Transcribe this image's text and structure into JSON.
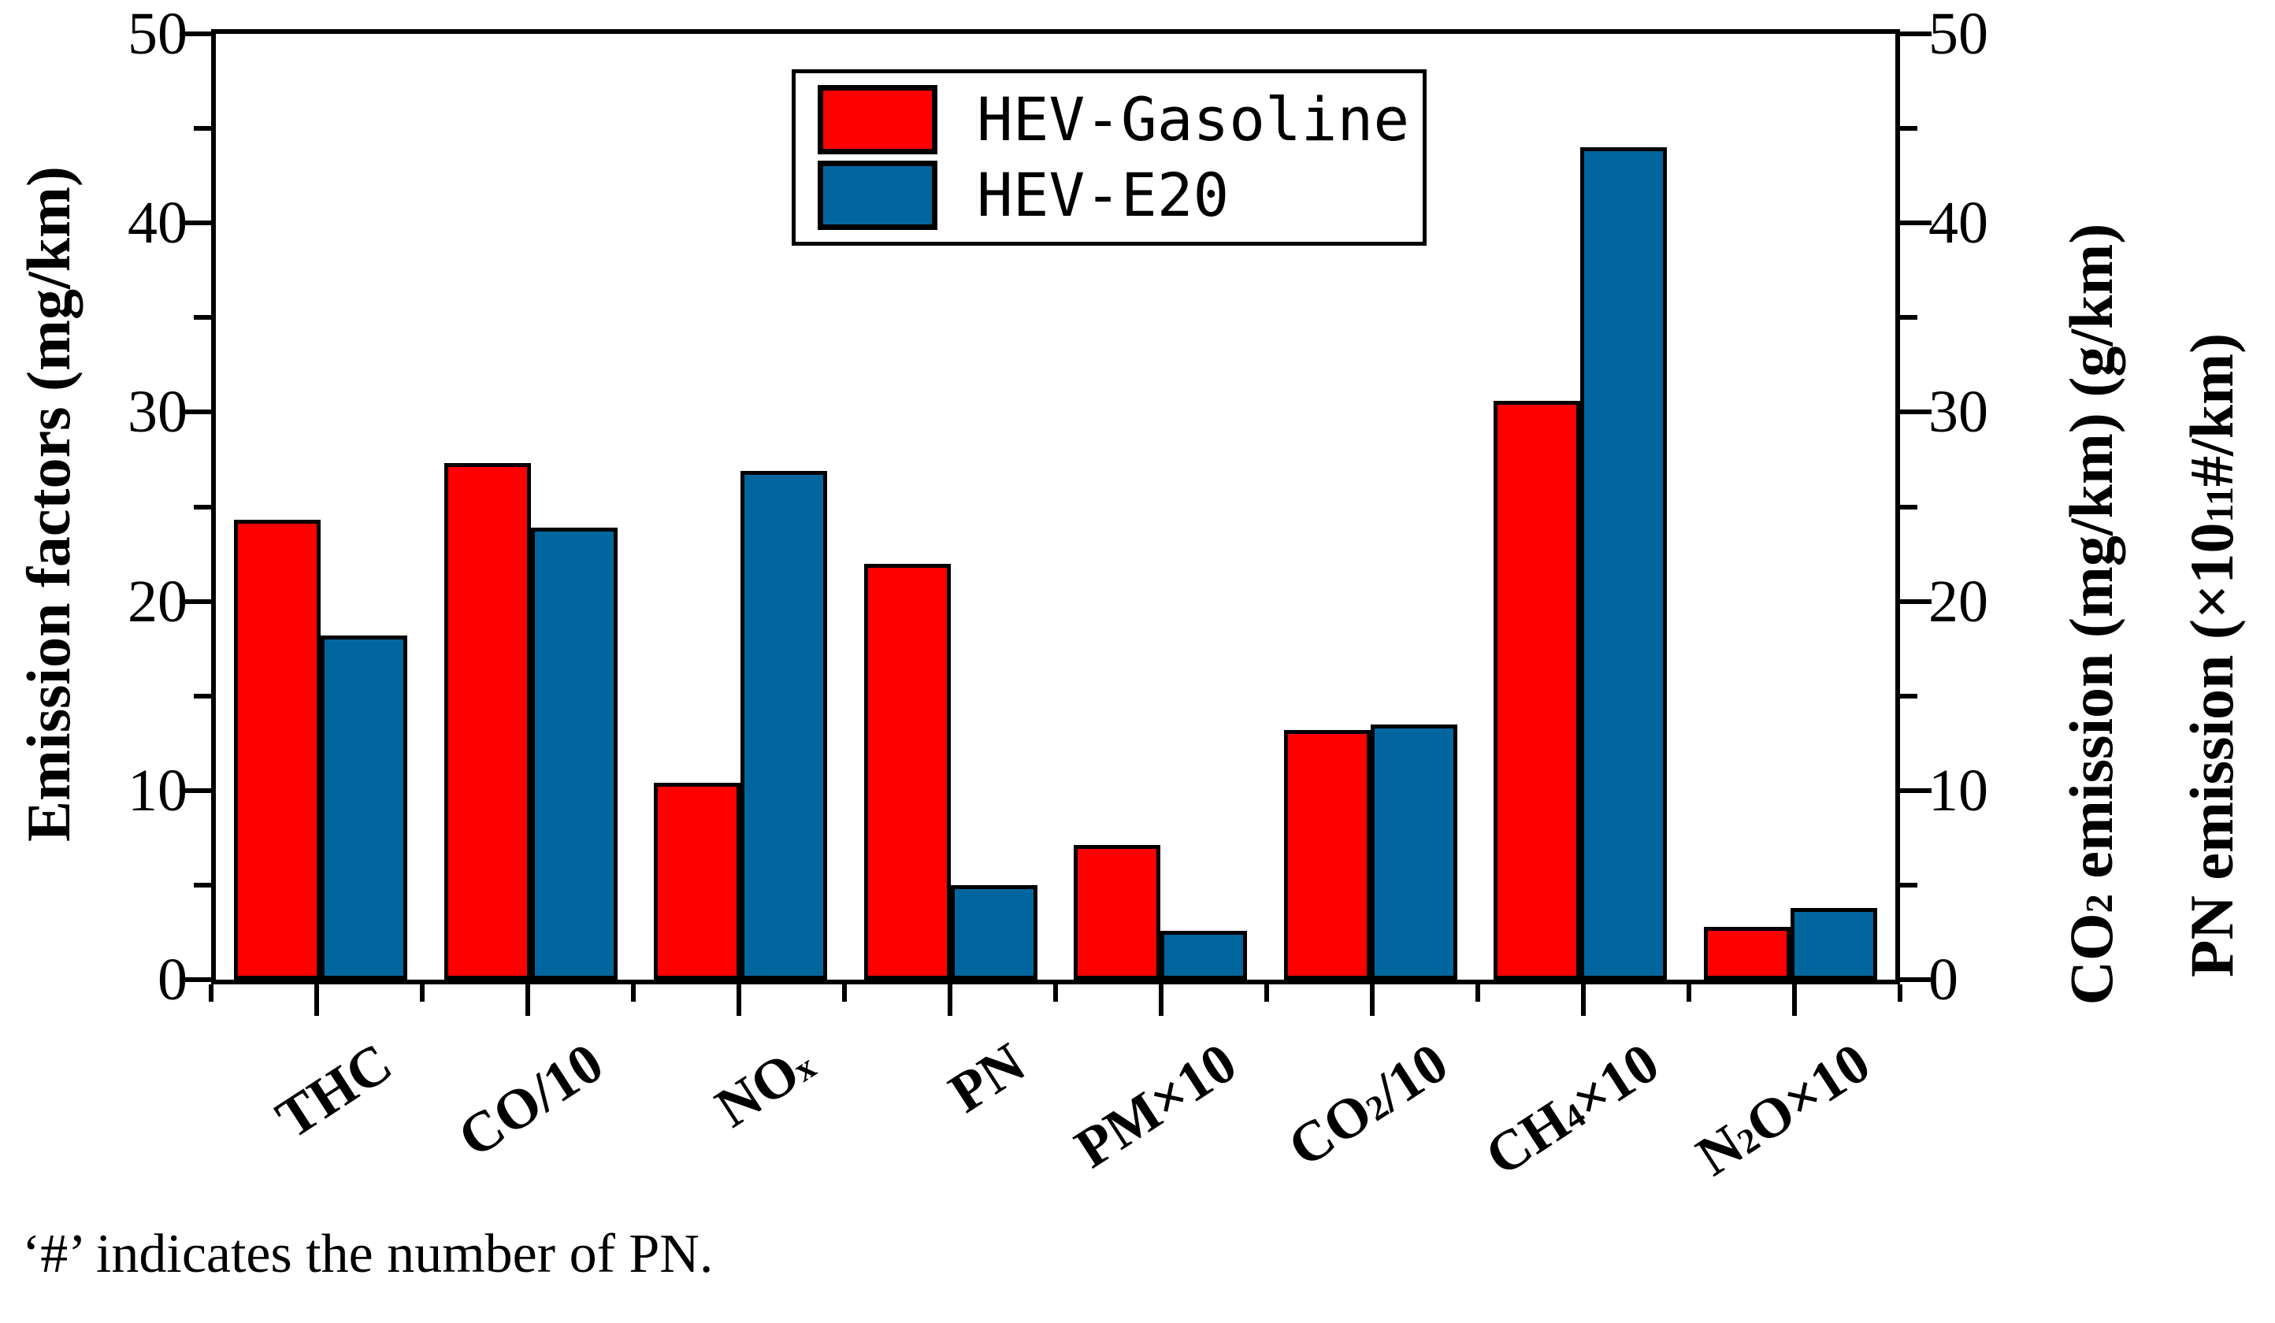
{
  "figure": {
    "caption": "‘#’ indicates the number of PN."
  },
  "chart_data": {
    "type": "bar",
    "title": "",
    "categories": [
      "THC",
      "CO/10",
      "NOx",
      "PN",
      "PM×10",
      "CO2/10",
      "CH4×10",
      "N2O×10"
    ],
    "category_segments": [
      [
        "THC"
      ],
      [
        "CO/10"
      ],
      [
        "NO",
        {
          "sub": "x"
        }
      ],
      [
        "PN"
      ],
      [
        "PM×10"
      ],
      [
        "CO",
        {
          "sub": "2"
        },
        "/10"
      ],
      [
        "CH",
        {
          "sub": "4"
        },
        "×10"
      ],
      [
        "N",
        {
          "sub": "2"
        },
        "O×10"
      ]
    ],
    "series": [
      {
        "name": "HEV-Gasoline",
        "color": "#ff0000",
        "values": [
          24.3,
          27.3,
          10.4,
          22.0,
          7.1,
          13.2,
          30.6,
          2.8
        ]
      },
      {
        "name": "HEV-E20",
        "color": "#02669e",
        "values": [
          18.2,
          23.9,
          26.9,
          5.0,
          2.6,
          13.5,
          44.0,
          3.8
        ]
      }
    ],
    "y_axis_left": {
      "label": "Emission factors (mg/km)",
      "range": [
        0,
        50
      ],
      "major_ticks": [
        0,
        10,
        20,
        30,
        40,
        50
      ],
      "minor_ticks": [
        5,
        15,
        25,
        35,
        45
      ]
    },
    "y_axis_right": {
      "labels": [
        "CO2 emission (mg/km) (g/km)",
        "PN emission (×10^11 #/km)"
      ],
      "label_segments": [
        [
          "CO",
          {
            "sub": "2"
          },
          " emission (mg/km) (g/km)"
        ],
        [
          "PN emission (×10",
          {
            "sup": "11"
          },
          "#/km)"
        ]
      ],
      "range": [
        0,
        50
      ],
      "major_ticks": [
        0,
        10,
        20,
        30,
        40,
        50
      ],
      "minor_ticks": [
        5,
        15,
        25,
        35,
        45
      ]
    },
    "legend": {
      "position": "top-center",
      "entries": [
        "HEV-Gasoline",
        "HEV-E20"
      ]
    },
    "grid": false
  }
}
